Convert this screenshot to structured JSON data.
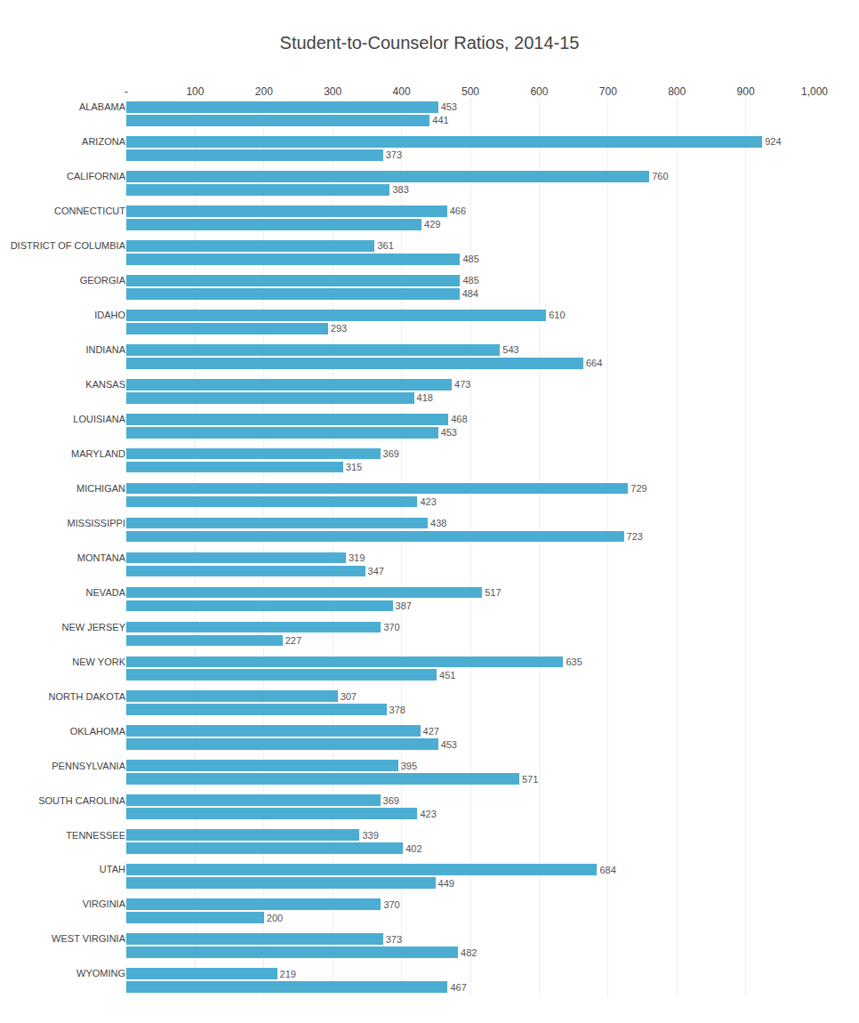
{
  "chart_data": {
    "type": "bar",
    "orientation": "horizontal",
    "title": "Student-to-Counselor Ratios, 2014-15",
    "categories": [
      "ALABAMA",
      null,
      "ARIZONA",
      null,
      "CALIFORNIA",
      null,
      "CONNECTICUT",
      null,
      "DISTRICT OF COLUMBIA",
      null,
      "GEORGIA",
      null,
      "IDAHO",
      null,
      "INDIANA",
      null,
      "KANSAS",
      null,
      "LOUISIANA",
      null,
      "MARYLAND",
      null,
      "MICHIGAN",
      null,
      "MISSISSIPPI",
      null,
      "MONTANA",
      null,
      "NEVADA",
      null,
      "NEW JERSEY",
      null,
      "NEW YORK",
      null,
      "NORTH DAKOTA",
      null,
      "OKLAHOMA",
      null,
      "PENNSYLVANIA",
      null,
      "SOUTH CAROLINA",
      null,
      "TENNESSEE",
      null,
      "UTAH",
      null,
      "VIRGINIA",
      null,
      "WEST VIRGINIA",
      null,
      "WYOMING",
      null
    ],
    "values": [
      453,
      441,
      924,
      373,
      760,
      383,
      466,
      429,
      361,
      485,
      485,
      484,
      610,
      293,
      543,
      664,
      473,
      418,
      468,
      453,
      369,
      315,
      729,
      423,
      438,
      723,
      319,
      347,
      517,
      387,
      370,
      227,
      635,
      451,
      307,
      378,
      427,
      453,
      395,
      571,
      369,
      423,
      339,
      402,
      684,
      449,
      370,
      200,
      373,
      482,
      219,
      467
    ],
    "color": "#4BADD2",
    "xlim": [
      0,
      1000
    ],
    "xticks": [
      {
        "value": 0,
        "label": "-"
      },
      100,
      200,
      300,
      400,
      500,
      600,
      700,
      800,
      900,
      {
        "value": 1000,
        "label": "1,000"
      }
    ],
    "grid": true,
    "data_labels": true
  }
}
